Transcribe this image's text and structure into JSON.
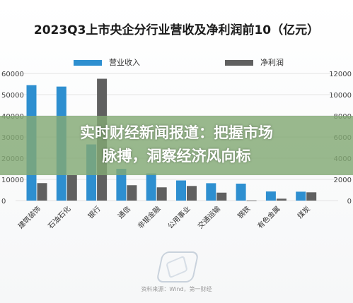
{
  "page": {
    "title": "2023Q3上市央企分行业营收及净利润前10（亿元）",
    "headline_line1": "实时财经新闻报道：把握市场",
    "headline_line2": "脉搏，洞察经济风向标",
    "source": "资料来源：Wind，第一财经"
  },
  "colors": {
    "revenue": "#2e8fd0",
    "profit": "#606060",
    "grid": "#e3e3e3"
  },
  "chart_data": {
    "type": "bar",
    "title": "2023Q3上市央企分行业营收及净利润前10（亿元）",
    "categories": [
      "建筑装饰",
      "石油石化",
      "银行",
      "通信",
      "非银金融",
      "公用事业",
      "交通运输",
      "钢铁",
      "有色金属",
      "煤炭"
    ],
    "series": [
      {
        "name": "营业收入",
        "axis": "left",
        "values": [
          54500,
          53800,
          26500,
          15000,
          12800,
          9500,
          8200,
          8000,
          4300,
          4200
        ]
      },
      {
        "name": "净利润",
        "axis": "right",
        "values": [
          1650,
          2400,
          11500,
          1450,
          1250,
          1380,
          750,
          15,
          180,
          780
        ]
      }
    ],
    "y_left": {
      "ticks": [
        0,
        10000,
        20000,
        30000,
        40000,
        50000,
        60000
      ],
      "tick_labels": [
        "0",
        "10000",
        "20000",
        "30000",
        "40000",
        "50000",
        "60000"
      ],
      "range": [
        0,
        60000
      ]
    },
    "y_right": {
      "ticks": [
        0,
        2000,
        4000,
        6000,
        8000,
        10000,
        12000
      ],
      "tick_labels": [
        "0",
        "2000",
        "4000",
        "6000",
        "8000",
        "10000",
        "12000"
      ],
      "range": [
        0,
        12000
      ]
    },
    "grid": true,
    "legend": "top-center"
  }
}
